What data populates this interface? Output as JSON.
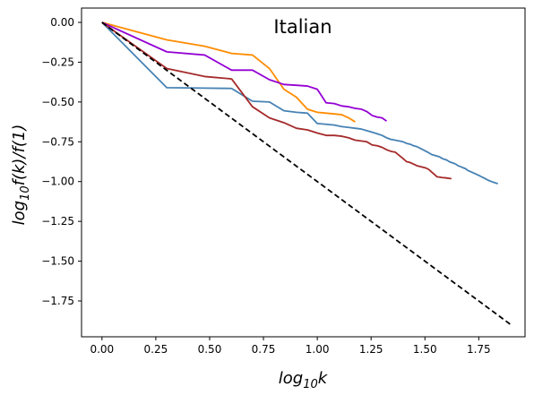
{
  "chart_data": {
    "type": "line",
    "title": "Italian",
    "xlabel_main": "log",
    "xlabel_sub": "10",
    "xlabel_tail": "k",
    "ylabel_main": "log",
    "ylabel_sub": "10",
    "ylabel_tail": "f(k)/f(1)",
    "xlim": [
      -0.095,
      1.965
    ],
    "ylim": [
      -1.975,
      0.09
    ],
    "xticks": [
      0.0,
      0.25,
      0.5,
      0.75,
      1.0,
      1.25,
      1.5,
      1.75
    ],
    "xtick_labels": [
      "0.00",
      "0.25",
      "0.50",
      "0.75",
      "1.00",
      "1.25",
      "1.50",
      "1.75"
    ],
    "yticks": [
      0.0,
      -0.25,
      -0.5,
      -0.75,
      -1.0,
      -1.25,
      -1.5,
      -1.75
    ],
    "ytick_labels": [
      "0.00",
      "−0.25",
      "−0.50",
      "−0.75",
      "−1.00",
      "−1.25",
      "−1.50",
      "−1.75"
    ],
    "grid": false,
    "series": [
      {
        "color": "#4682b4",
        "points": [
          [
            0,
            0
          ],
          [
            0.301,
            -0.41
          ],
          [
            0.477,
            -0.413
          ],
          [
            0.602,
            -0.415
          ],
          [
            0.699,
            -0.495
          ],
          [
            0.778,
            -0.5
          ],
          [
            0.845,
            -0.555
          ],
          [
            0.903,
            -0.565
          ],
          [
            0.954,
            -0.57
          ],
          [
            1.0,
            -0.635
          ],
          [
            1.041,
            -0.64
          ],
          [
            1.079,
            -0.645
          ],
          [
            1.114,
            -0.655
          ],
          [
            1.146,
            -0.66
          ],
          [
            1.176,
            -0.665
          ],
          [
            1.204,
            -0.67
          ],
          [
            1.23,
            -0.68
          ],
          [
            1.255,
            -0.69
          ],
          [
            1.279,
            -0.7
          ],
          [
            1.301,
            -0.71
          ],
          [
            1.322,
            -0.725
          ],
          [
            1.342,
            -0.735
          ],
          [
            1.362,
            -0.74
          ],
          [
            1.38,
            -0.745
          ],
          [
            1.398,
            -0.75
          ],
          [
            1.415,
            -0.76
          ],
          [
            1.431,
            -0.765
          ],
          [
            1.447,
            -0.775
          ],
          [
            1.462,
            -0.78
          ],
          [
            1.477,
            -0.79
          ],
          [
            1.491,
            -0.8
          ],
          [
            1.505,
            -0.81
          ],
          [
            1.519,
            -0.82
          ],
          [
            1.531,
            -0.83
          ],
          [
            1.544,
            -0.835
          ],
          [
            1.556,
            -0.84
          ],
          [
            1.568,
            -0.845
          ],
          [
            1.58,
            -0.855
          ],
          [
            1.591,
            -0.86
          ],
          [
            1.602,
            -0.865
          ],
          [
            1.613,
            -0.875
          ],
          [
            1.623,
            -0.88
          ],
          [
            1.633,
            -0.885
          ],
          [
            1.643,
            -0.89
          ],
          [
            1.653,
            -0.9
          ],
          [
            1.663,
            -0.905
          ],
          [
            1.672,
            -0.91
          ],
          [
            1.681,
            -0.915
          ],
          [
            1.69,
            -0.92
          ],
          [
            1.699,
            -0.93
          ],
          [
            1.708,
            -0.935
          ],
          [
            1.716,
            -0.94
          ],
          [
            1.724,
            -0.945
          ],
          [
            1.732,
            -0.95
          ],
          [
            1.74,
            -0.955
          ],
          [
            1.748,
            -0.96
          ],
          [
            1.756,
            -0.965
          ],
          [
            1.763,
            -0.97
          ],
          [
            1.771,
            -0.975
          ],
          [
            1.778,
            -0.98
          ],
          [
            1.785,
            -0.985
          ],
          [
            1.792,
            -0.99
          ],
          [
            1.799,
            -0.995
          ],
          [
            1.806,
            -0.998
          ],
          [
            1.813,
            -1.002
          ],
          [
            1.82,
            -1.005
          ],
          [
            1.826,
            -1.008
          ],
          [
            1.833,
            -1.011
          ],
          [
            1.839,
            -1.013
          ]
        ]
      },
      {
        "color": "#ff8c00",
        "points": [
          [
            0,
            0
          ],
          [
            0.301,
            -0.11
          ],
          [
            0.477,
            -0.15
          ],
          [
            0.602,
            -0.195
          ],
          [
            0.699,
            -0.205
          ],
          [
            0.778,
            -0.29
          ],
          [
            0.845,
            -0.42
          ],
          [
            0.903,
            -0.47
          ],
          [
            0.954,
            -0.545
          ],
          [
            1.0,
            -0.565
          ],
          [
            1.041,
            -0.57
          ],
          [
            1.079,
            -0.575
          ],
          [
            1.114,
            -0.58
          ],
          [
            1.146,
            -0.6
          ],
          [
            1.176,
            -0.625
          ]
        ]
      },
      {
        "color": "#9400d3",
        "points": [
          [
            0,
            0
          ],
          [
            0.301,
            -0.185
          ],
          [
            0.477,
            -0.205
          ],
          [
            0.602,
            -0.3
          ],
          [
            0.699,
            -0.3
          ],
          [
            0.778,
            -0.36
          ],
          [
            0.845,
            -0.39
          ],
          [
            0.903,
            -0.395
          ],
          [
            0.954,
            -0.4
          ],
          [
            1.0,
            -0.42
          ],
          [
            1.041,
            -0.505
          ],
          [
            1.079,
            -0.51
          ],
          [
            1.114,
            -0.525
          ],
          [
            1.146,
            -0.53
          ],
          [
            1.176,
            -0.54
          ],
          [
            1.204,
            -0.545
          ],
          [
            1.23,
            -0.56
          ],
          [
            1.255,
            -0.585
          ],
          [
            1.279,
            -0.595
          ],
          [
            1.301,
            -0.6
          ],
          [
            1.322,
            -0.62
          ]
        ]
      },
      {
        "color": "#a52a2a",
        "points": [
          [
            0,
            0
          ],
          [
            0.301,
            -0.29
          ],
          [
            0.477,
            -0.34
          ],
          [
            0.602,
            -0.355
          ],
          [
            0.699,
            -0.53
          ],
          [
            0.778,
            -0.6
          ],
          [
            0.845,
            -0.63
          ],
          [
            0.903,
            -0.665
          ],
          [
            0.954,
            -0.675
          ],
          [
            1.0,
            -0.695
          ],
          [
            1.041,
            -0.71
          ],
          [
            1.079,
            -0.71
          ],
          [
            1.114,
            -0.715
          ],
          [
            1.146,
            -0.725
          ],
          [
            1.176,
            -0.74
          ],
          [
            1.204,
            -0.745
          ],
          [
            1.23,
            -0.75
          ],
          [
            1.255,
            -0.77
          ],
          [
            1.279,
            -0.775
          ],
          [
            1.301,
            -0.785
          ],
          [
            1.322,
            -0.8
          ],
          [
            1.342,
            -0.81
          ],
          [
            1.362,
            -0.815
          ],
          [
            1.38,
            -0.835
          ],
          [
            1.398,
            -0.855
          ],
          [
            1.415,
            -0.875
          ],
          [
            1.431,
            -0.88
          ],
          [
            1.447,
            -0.89
          ],
          [
            1.462,
            -0.9
          ],
          [
            1.477,
            -0.905
          ],
          [
            1.491,
            -0.91
          ],
          [
            1.505,
            -0.915
          ],
          [
            1.519,
            -0.925
          ],
          [
            1.531,
            -0.94
          ],
          [
            1.544,
            -0.955
          ],
          [
            1.556,
            -0.97
          ],
          [
            1.568,
            -0.972
          ],
          [
            1.58,
            -0.975
          ],
          [
            1.591,
            -0.976
          ],
          [
            1.602,
            -0.978
          ],
          [
            1.613,
            -0.98
          ],
          [
            1.623,
            -0.982
          ]
        ]
      },
      {
        "color": "#000000",
        "dashed": true,
        "points": [
          [
            0,
            0
          ],
          [
            1.9,
            -1.9
          ]
        ]
      }
    ]
  }
}
